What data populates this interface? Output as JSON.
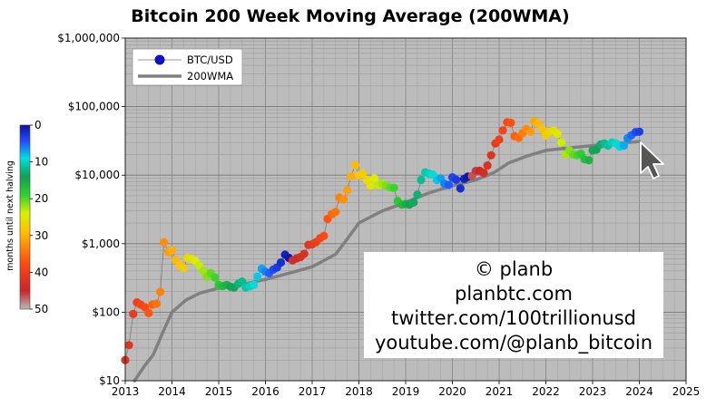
{
  "chart_data": {
    "type": "scatter",
    "title": "Bitcoin 200 Week Moving Average (200WMA)",
    "xlabel": "",
    "ylabel": "",
    "y_scale": "log",
    "xlim": [
      2013,
      2025
    ],
    "ylim": [
      10,
      1000000
    ],
    "x_ticks": [
      "2013",
      "2014",
      "2015",
      "2016",
      "2017",
      "2018",
      "2019",
      "2020",
      "2021",
      "2022",
      "2023",
      "2024",
      "2025"
    ],
    "y_ticks": [
      "$10",
      "$100",
      "$1,000",
      "$10,000",
      "$100,000",
      "$1,000,000"
    ],
    "grid": true,
    "legend_position": "top-left",
    "legend": [
      "BTC/USD",
      "200WMA"
    ],
    "series": [
      {
        "name": "BTC/USD",
        "kind": "scatter",
        "color_by": "months until next halving",
        "x": [
          2013.0,
          2013.08,
          2013.17,
          2013.25,
          2013.33,
          2013.42,
          2013.5,
          2013.58,
          2013.67,
          2013.75,
          2013.83,
          2013.92,
          2014.0,
          2014.08,
          2014.17,
          2014.25,
          2014.33,
          2014.42,
          2014.5,
          2014.58,
          2014.67,
          2014.75,
          2014.83,
          2014.92,
          2015.0,
          2015.08,
          2015.17,
          2015.25,
          2015.33,
          2015.42,
          2015.5,
          2015.58,
          2015.67,
          2015.75,
          2015.83,
          2015.92,
          2016.0,
          2016.08,
          2016.17,
          2016.25,
          2016.33,
          2016.42,
          2016.5,
          2016.58,
          2016.67,
          2016.75,
          2016.83,
          2016.92,
          2017.0,
          2017.08,
          2017.17,
          2017.25,
          2017.33,
          2017.42,
          2017.5,
          2017.58,
          2017.67,
          2017.75,
          2017.83,
          2017.92,
          2018.0,
          2018.08,
          2018.17,
          2018.25,
          2018.33,
          2018.42,
          2018.5,
          2018.58,
          2018.67,
          2018.75,
          2018.83,
          2018.92,
          2019.0,
          2019.08,
          2019.17,
          2019.25,
          2019.33,
          2019.42,
          2019.5,
          2019.58,
          2019.67,
          2019.75,
          2019.83,
          2019.92,
          2020.0,
          2020.08,
          2020.17,
          2020.25,
          2020.33,
          2020.42,
          2020.5,
          2020.58,
          2020.67,
          2020.75,
          2020.83,
          2020.92,
          2021.0,
          2021.08,
          2021.17,
          2021.25,
          2021.33,
          2021.42,
          2021.5,
          2021.58,
          2021.67,
          2021.75,
          2021.83,
          2021.92,
          2022.0,
          2022.08,
          2022.17,
          2022.25,
          2022.33,
          2022.42,
          2022.5,
          2022.58,
          2022.67,
          2022.75,
          2022.83,
          2022.92,
          2023.0,
          2023.08,
          2023.17,
          2023.25,
          2023.33,
          2023.42,
          2023.5,
          2023.58,
          2023.67,
          2023.75,
          2023.83,
          2023.92,
          2024.0
        ],
        "y": [
          20,
          33,
          94,
          139,
          129,
          118,
          97,
          129,
          133,
          198,
          1050,
          750,
          800,
          580,
          480,
          440,
          620,
          600,
          560,
          480,
          400,
          330,
          370,
          320,
          250,
          240,
          250,
          235,
          230,
          260,
          280,
          230,
          240,
          250,
          330,
          430,
          390,
          370,
          420,
          450,
          530,
          690,
          620,
          570,
          610,
          640,
          710,
          960,
          980,
          1050,
          1200,
          1300,
          2300,
          2700,
          2900,
          4700,
          4400,
          6000,
          9600,
          14000,
          10000,
          10500,
          8500,
          7000,
          9000,
          7200,
          7500,
          7000,
          6600,
          6500,
          4200,
          3700,
          3800,
          3700,
          4000,
          5200,
          8500,
          11000,
          10500,
          10200,
          8500,
          9000,
          7500,
          7200,
          9300,
          8600,
          6400,
          8800,
          9500,
          9700,
          11500,
          11600,
          10800,
          13800,
          19500,
          29000,
          33000,
          45000,
          59000,
          58000,
          37000,
          35000,
          41000,
          47000,
          43000,
          61000,
          57000,
          47000,
          38000,
          43000,
          45000,
          40000,
          30000,
          20000,
          23000,
          20000,
          19500,
          20500,
          17000,
          16500,
          23000,
          23500,
          28000,
          29000,
          27000,
          30000,
          29000,
          26000,
          27000,
          34500,
          38000,
          42500,
          43000
        ]
      },
      {
        "name": "200WMA",
        "kind": "line",
        "color": "#808080",
        "x": [
          2013.2,
          2013.4,
          2013.6,
          2013.8,
          2014.0,
          2014.3,
          2014.6,
          2015.0,
          2015.5,
          2016.0,
          2016.5,
          2017.0,
          2017.5,
          2017.8,
          2018.0,
          2018.5,
          2019.0,
          2019.5,
          2020.0,
          2020.5,
          2020.9,
          2021.2,
          2021.6,
          2022.0,
          2022.5,
          2023.0,
          2023.5,
          2024.0
        ],
        "y": [
          10,
          16,
          24,
          50,
          100,
          150,
          190,
          225,
          255,
          300,
          370,
          460,
          700,
          1300,
          2000,
          3000,
          4000,
          5500,
          7000,
          8500,
          11000,
          15000,
          19000,
          23000,
          25000,
          27000,
          29000,
          31000
        ]
      }
    ],
    "colorbar": {
      "label": "months until next halving",
      "ticks": [
        "0",
        "10",
        "20",
        "30",
        "40",
        "50"
      ],
      "min": 0,
      "max": 50
    }
  },
  "watermark": {
    "line1": "© planb",
    "line2": "planbtc.com",
    "line3": "twitter.com/100trillionusd",
    "line4": "youtube.com/@planb_bitcoin"
  },
  "cursor_icon": "mouse-pointer-icon"
}
